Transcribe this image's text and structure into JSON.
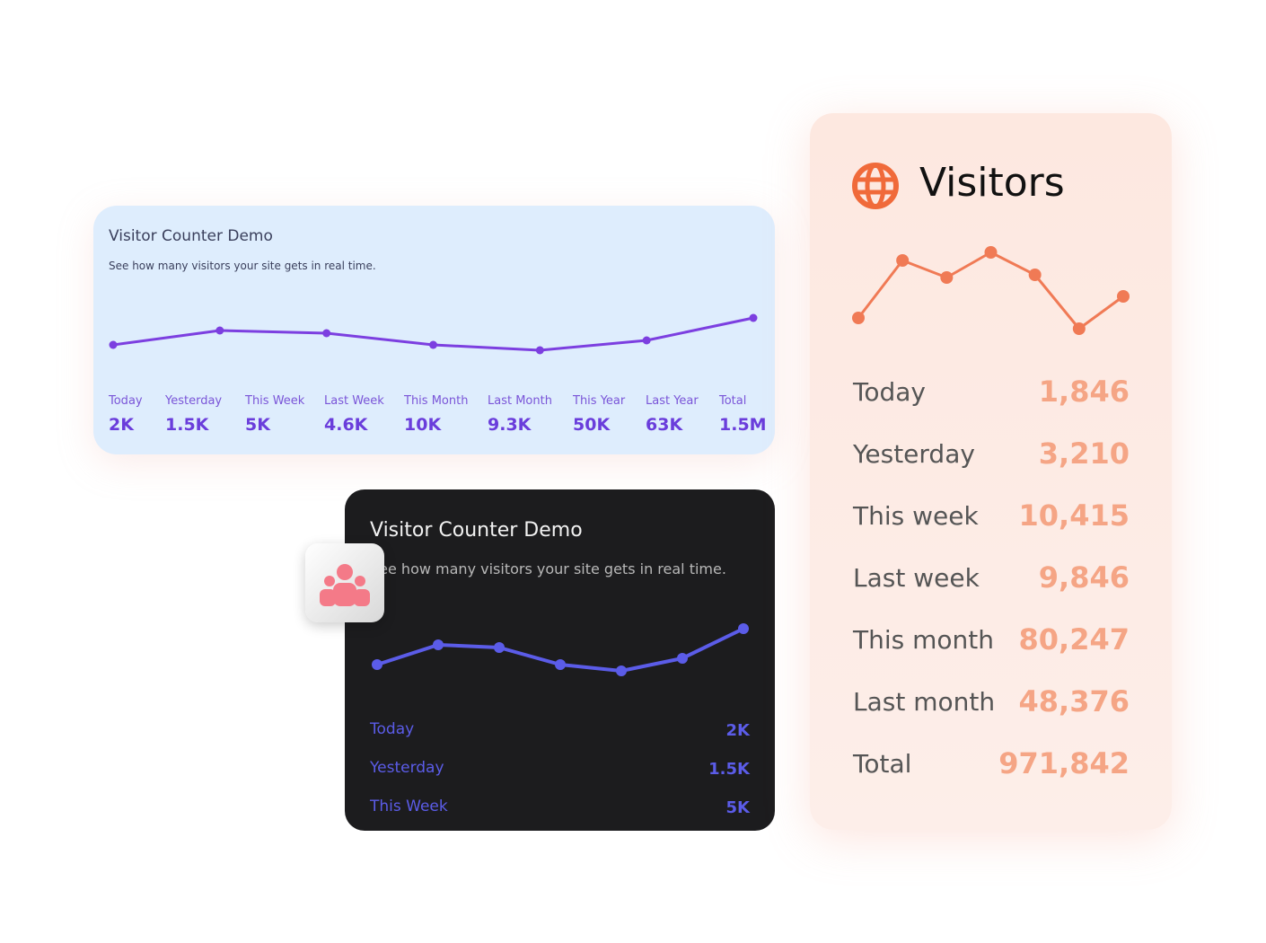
{
  "light_card": {
    "title": "Visitor Counter Demo",
    "subtitle": "See how many visitors your site gets in real time.",
    "trend": [
      20,
      36,
      33,
      20,
      14,
      25,
      50
    ],
    "stats": [
      {
        "label": "Today",
        "value": "2K"
      },
      {
        "label": "Yesterday",
        "value": "1.5K"
      },
      {
        "label": "This Week",
        "value": "5K"
      },
      {
        "label": "Last Week",
        "value": "4.6K"
      },
      {
        "label": "This Month",
        "value": "10K"
      },
      {
        "label": "Last Month",
        "value": "9.3K"
      },
      {
        "label": "This Year",
        "value": "50K"
      },
      {
        "label": "Last Year",
        "value": "63K"
      },
      {
        "label": "Total",
        "value": "1.5M"
      }
    ]
  },
  "dark_card": {
    "title": "Visitor Counter Demo",
    "subtitle": "See how many visitors your site gets in real time.",
    "trend": [
      27,
      49,
      46,
      27,
      20,
      34,
      67
    ],
    "stats": [
      {
        "label": "Today",
        "value": "2K"
      },
      {
        "label": "Yesterday",
        "value": "1.5K"
      },
      {
        "label": "This Week",
        "value": "5K"
      }
    ]
  },
  "visitors_card": {
    "title": "Visitors",
    "trend": [
      32,
      96,
      77,
      105,
      80,
      20,
      56
    ],
    "stats": [
      {
        "label": "Today",
        "value": "1,846"
      },
      {
        "label": "Yesterday",
        "value": "3,210"
      },
      {
        "label": "This week",
        "value": "10,415"
      },
      {
        "label": "Last week",
        "value": "9,846"
      },
      {
        "label": "This month",
        "value": "80,247"
      },
      {
        "label": "Last month",
        "value": "48,376"
      },
      {
        "label": "Total",
        "value": "971,842"
      }
    ]
  }
}
